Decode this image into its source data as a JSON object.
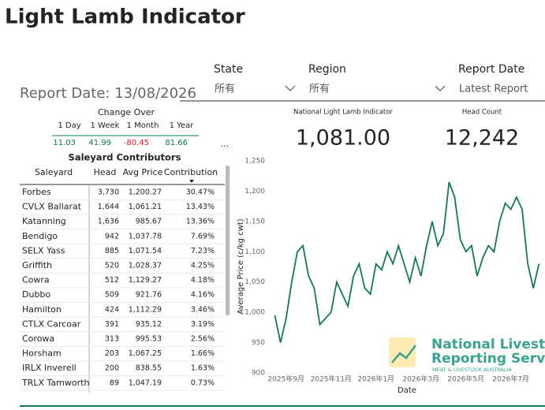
{
  "header": {
    "title": "Light Lamb Indicator"
  },
  "filters": [
    {
      "label": "State",
      "value": "所有"
    },
    {
      "label": "Region",
      "value": "所有"
    },
    {
      "label": "Report Date",
      "value": "Latest Report"
    }
  ],
  "report_date": "Report Date: 13/08/2026",
  "change_over": {
    "title": "Change Over",
    "columns": [
      "1 Day",
      "1 Week",
      "1 Month",
      "1 Year"
    ],
    "values": [
      11.03,
      41.99,
      -80.45,
      81.66
    ],
    "more": "..."
  },
  "saleyards": {
    "title": "Saleyard Contributors",
    "columns": [
      "Saleyard",
      "Head",
      "Avg Price",
      "Contribution"
    ],
    "rows": [
      [
        "Forbes",
        "3,730",
        "1,200.27",
        "30.47%"
      ],
      [
        "CVLX Ballarat",
        "1,644",
        "1,061.21",
        "13.43%"
      ],
      [
        "Katanning",
        "1,636",
        "985.67",
        "13.36%"
      ],
      [
        "Bendigo",
        "942",
        "1,037.78",
        "7.69%"
      ],
      [
        "SELX Yass",
        "885",
        "1,071.54",
        "7.23%"
      ],
      [
        "Griffith",
        "520",
        "1,028.37",
        "4.25%"
      ],
      [
        "Cowra",
        "512",
        "1,129.27",
        "4.18%"
      ],
      [
        "Dubbo",
        "509",
        "921.76",
        "4.16%"
      ],
      [
        "Hamilton",
        "424",
        "1,112.29",
        "3.46%"
      ],
      [
        "CTLX Carcoar",
        "391",
        "935.12",
        "3.19%"
      ],
      [
        "Corowa",
        "313",
        "995.53",
        "2.56%"
      ],
      [
        "Horsham",
        "203",
        "1,067.25",
        "1.66%"
      ],
      [
        "IRLX Inverell",
        "200",
        "838.55",
        "1.63%"
      ],
      [
        "TRLX Tamworth",
        "89",
        "1,047.19",
        "0.73%"
      ]
    ]
  },
  "kpis": [
    {
      "label": "National Light Lamb Indicator",
      "value": "1,081.00"
    },
    {
      "label": "Head Count",
      "value": "12,242"
    }
  ],
  "chart_data": {
    "type": "line",
    "xlabel": "Date",
    "ylabel": "Average Price (c/kg cwt)",
    "categories": [
      null,
      null,
      "2025年9月",
      null,
      null,
      null,
      null,
      null,
      null,
      null,
      "2025年11月",
      null,
      null,
      null,
      null,
      null,
      null,
      null,
      "2026年1月",
      null,
      null,
      null,
      null,
      null,
      null,
      null,
      "2026年3月",
      null,
      null,
      null,
      null,
      null,
      null,
      null,
      "2026年5月",
      null,
      null,
      null,
      null,
      null,
      null,
      null,
      "2026年7月",
      null,
      null,
      null,
      null,
      null
    ],
    "series": [
      {
        "color": "#117a55",
        "values": [
          995,
          950,
          990,
          1050,
          1100,
          1110,
          1060,
          1040,
          980,
          990,
          1000,
          1050,
          1030,
          1010,
          1060,
          1080,
          1040,
          1030,
          1080,
          1070,
          1100,
          1080,
          1110,
          1080,
          1050,
          1090,
          1060,
          1110,
          1150,
          1110,
          1130,
          1215,
          1190,
          1120,
          1100,
          1110,
          1060,
          1090,
          1110,
          1100,
          1150,
          1180,
          1170,
          1190,
          1170,
          1080,
          1040,
          1080
        ]
      }
    ],
    "ylim": [
      900,
      1250
    ],
    "yticks": [
      900,
      950,
      {
        "value": 1000,
        "label": "1,000"
      },
      {
        "value": 1050,
        "label": "1,050"
      },
      {
        "value": 1100,
        "label": "1,100"
      },
      {
        "value": 1150,
        "label": "1,150"
      },
      {
        "value": 1200,
        "label": "1,200"
      },
      {
        "value": 1250,
        "label": "1,250"
      }
    ]
  },
  "logo": {
    "line1": "National Livestock",
    "line2": "Reporting Service",
    "line3": "MEAT & LIVESTOCK AUSTRALIA"
  }
}
